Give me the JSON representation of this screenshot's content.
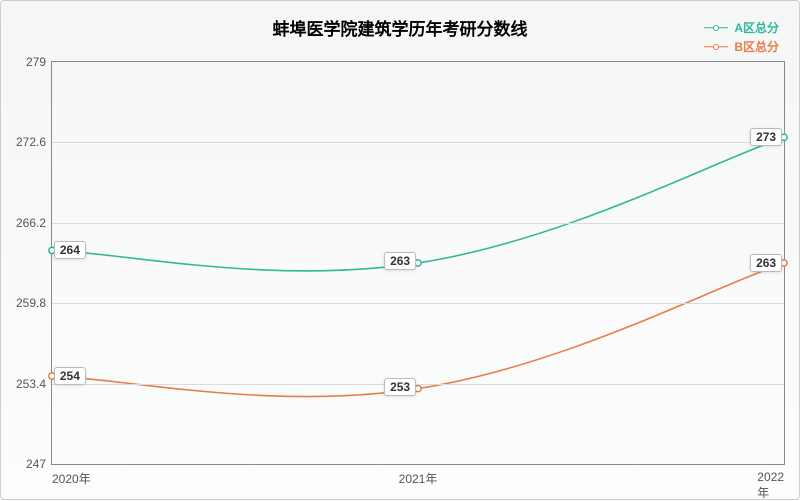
{
  "chart": {
    "type": "line",
    "title": "蚌埠医学院建筑学历年考研分数线",
    "title_fontsize": 17,
    "title_fontweight": "bold",
    "background_gradient_top": "#f5f7f6",
    "background_gradient_bottom": "#fcfdfc",
    "border_color": "#cccccc",
    "grid_color": "#d9dcda",
    "axis_color": "#888888",
    "label_fontsize": 12,
    "x": {
      "categories": [
        "2020年",
        "2021年",
        "2022年"
      ]
    },
    "y": {
      "min": 247,
      "max": 279,
      "ticks": [
        247,
        253.4,
        259.8,
        266.2,
        272.6,
        279
      ]
    },
    "series": [
      {
        "name": "A区总分",
        "color": "#2fb89a",
        "line_width": 1.6,
        "marker": "hollow-circle",
        "values": [
          264,
          263,
          273
        ],
        "smooth": true
      },
      {
        "name": "B区总分",
        "color": "#e87c4a",
        "line_width": 1.6,
        "marker": "hollow-circle",
        "values": [
          254,
          253,
          263
        ],
        "smooth": true
      }
    ],
    "legend": {
      "position": "top-right"
    }
  }
}
